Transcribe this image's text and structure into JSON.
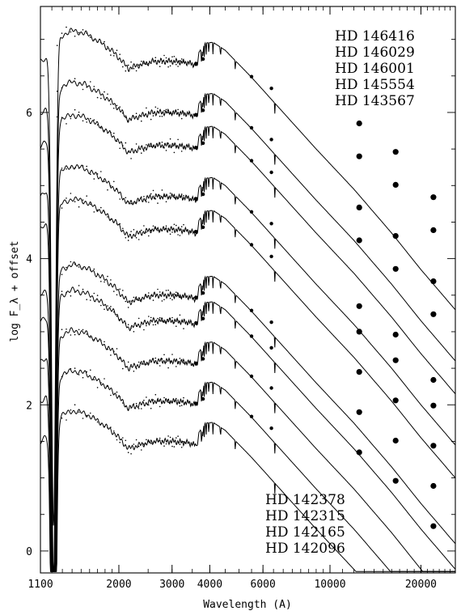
{
  "chart_data": {
    "type": "line",
    "xlabel": "Wavelength (A)",
    "ylabel": "log F_λ + offset",
    "x_scale": "log",
    "xlim": [
      1100,
      26000
    ],
    "ylim": [
      -0.3,
      7.45
    ],
    "x_ticks": [
      1100,
      2000,
      3000,
      4000,
      6000,
      10000,
      20000
    ],
    "y_ticks": [
      0,
      2,
      4,
      6
    ],
    "star_labels_top": [
      "HD 146416",
      "HD 146029",
      "HD 146001",
      "HD 145554",
      "HD 143567"
    ],
    "star_labels_bottom": [
      "HD 142378",
      "HD 142315",
      "HD 142165",
      "HD 142096"
    ],
    "series": [
      {
        "offset": 6.4,
        "photometry": [
          [
            3600,
            6.67
          ],
          [
            3800,
            6.73
          ],
          [
            5500,
            6.49
          ],
          [
            6400,
            6.33
          ]
        ]
      },
      {
        "offset": 5.7,
        "photometry": [
          [
            3600,
            5.97
          ],
          [
            3800,
            6.03
          ],
          [
            5500,
            5.79
          ],
          [
            6400,
            5.63
          ],
          [
            12500,
            5.85
          ],
          [
            16500,
            5.46
          ],
          [
            22000,
            4.84
          ]
        ]
      },
      {
        "offset": 5.25,
        "photometry": [
          [
            3600,
            5.52
          ],
          [
            3800,
            5.58
          ],
          [
            5500,
            5.34
          ],
          [
            6400,
            5.18
          ],
          [
            12500,
            5.4
          ],
          [
            16500,
            5.01
          ],
          [
            22000,
            4.39
          ]
        ]
      },
      {
        "offset": 4.55,
        "photometry": [
          [
            3600,
            4.82
          ],
          [
            3800,
            4.88
          ],
          [
            5500,
            4.64
          ],
          [
            6400,
            4.48
          ],
          [
            12500,
            4.7
          ],
          [
            16500,
            4.31
          ],
          [
            22000,
            3.69
          ]
        ]
      },
      {
        "offset": 4.1,
        "photometry": [
          [
            3600,
            4.37
          ],
          [
            3800,
            4.43
          ],
          [
            5500,
            4.19
          ],
          [
            6400,
            4.03
          ],
          [
            12500,
            4.25
          ],
          [
            16500,
            3.86
          ],
          [
            22000,
            3.24
          ]
        ]
      },
      {
        "offset": 3.2,
        "photometry": [
          [
            3600,
            3.47
          ],
          [
            3800,
            3.53
          ],
          [
            5500,
            3.29
          ],
          [
            6400,
            3.13
          ],
          [
            12500,
            3.35
          ],
          [
            16500,
            2.96
          ],
          [
            22000,
            2.34
          ]
        ]
      },
      {
        "offset": 2.85,
        "photometry": [
          [
            3600,
            3.12
          ],
          [
            3800,
            3.18
          ],
          [
            5500,
            2.94
          ],
          [
            6400,
            2.78
          ],
          [
            12500,
            3.0
          ],
          [
            16500,
            2.61
          ],
          [
            22000,
            1.99
          ]
        ]
      },
      {
        "offset": 2.3,
        "photometry": [
          [
            3600,
            2.57
          ],
          [
            3800,
            2.63
          ],
          [
            5500,
            2.39
          ],
          [
            6400,
            2.23
          ],
          [
            12500,
            2.45
          ],
          [
            16500,
            2.06
          ],
          [
            22000,
            1.44
          ]
        ]
      },
      {
        "offset": 1.75,
        "photometry": [
          [
            3600,
            2.02
          ],
          [
            3800,
            2.08
          ],
          [
            5500,
            1.84
          ],
          [
            6400,
            1.68
          ],
          [
            12500,
            1.9
          ],
          [
            16500,
            1.51
          ],
          [
            22000,
            0.89
          ]
        ]
      },
      {
        "offset": 1.2,
        "photometry": [
          [
            12500,
            1.35
          ],
          [
            16500,
            0.96
          ],
          [
            22000,
            0.34
          ]
        ]
      }
    ]
  }
}
